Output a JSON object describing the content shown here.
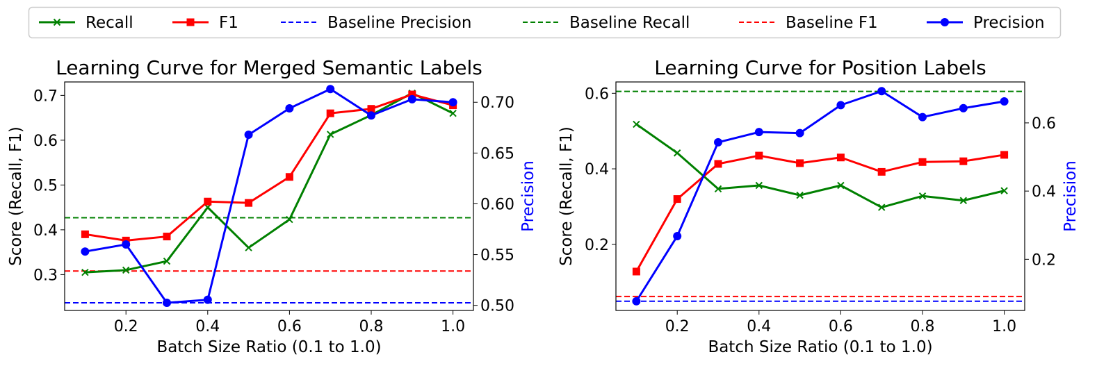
{
  "legend": [
    {
      "label": "Recall",
      "color": "#008000",
      "style": "solid",
      "marker": "x"
    },
    {
      "label": "F1",
      "color": "#ff0000",
      "style": "solid",
      "marker": "square"
    },
    {
      "label": "Baseline Precision",
      "color": "#0000ff",
      "style": "dashed",
      "marker": "none"
    },
    {
      "label": "Baseline Recall",
      "color": "#008000",
      "style": "dashed",
      "marker": "none"
    },
    {
      "label": "Baseline F1",
      "color": "#ff0000",
      "style": "dashed",
      "marker": "none"
    },
    {
      "label": "Precision",
      "color": "#0000ff",
      "style": "solid",
      "marker": "circle"
    }
  ],
  "chart_data": [
    {
      "type": "line",
      "title": "Learning Curve for Merged Semantic Labels",
      "xlabel": "Batch Size Ratio (0.1 to 1.0)",
      "ylabel": "Score (Recall, F1)",
      "ylabel_right": "Precision",
      "x": [
        0.1,
        0.2,
        0.3,
        0.4,
        0.5,
        0.6,
        0.7,
        0.8,
        0.9,
        1.0
      ],
      "xlim": [
        0.05,
        1.05
      ],
      "ylim": [
        0.22,
        0.73
      ],
      "ylim_right": [
        0.495,
        0.72
      ],
      "xticks": [
        "0.2",
        "0.4",
        "0.6",
        "0.8",
        "1.0"
      ],
      "yticks": [
        "0.3",
        "0.4",
        "0.5",
        "0.6",
        "0.7"
      ],
      "yticks_right": [
        "0.50",
        "0.55",
        "0.60",
        "0.65",
        "0.70"
      ],
      "series": [
        {
          "name": "Recall",
          "axis": "left",
          "values": [
            0.305,
            0.31,
            0.33,
            0.45,
            0.36,
            0.423,
            0.613,
            0.656,
            0.705,
            0.66
          ]
        },
        {
          "name": "F1",
          "axis": "left",
          "values": [
            0.39,
            0.376,
            0.385,
            0.463,
            0.46,
            0.518,
            0.66,
            0.67,
            0.702,
            0.678
          ]
        },
        {
          "name": "Precision",
          "axis": "right",
          "values": [
            0.553,
            0.56,
            0.5025,
            0.5055,
            0.668,
            0.694,
            0.713,
            0.687,
            0.703,
            0.7
          ]
        }
      ],
      "baselines": [
        {
          "name": "Baseline Precision",
          "axis": "right",
          "value": 0.5025
        },
        {
          "name": "Baseline Recall",
          "axis": "left",
          "value": 0.427
        },
        {
          "name": "Baseline F1",
          "axis": "left",
          "value": 0.308
        }
      ]
    },
    {
      "type": "line",
      "title": "Learning Curve for Position Labels",
      "xlabel": "Batch Size Ratio (0.1 to 1.0)",
      "ylabel": "Score (Recall, F1)",
      "ylabel_right": "Precision",
      "x": [
        0.1,
        0.2,
        0.3,
        0.4,
        0.5,
        0.6,
        0.7,
        0.8,
        0.9,
        1.0
      ],
      "xlim": [
        0.05,
        1.05
      ],
      "ylim": [
        0.025,
        0.63
      ],
      "ylim_right": [
        0.05,
        0.72
      ],
      "xticks": [
        "0.2",
        "0.4",
        "0.6",
        "0.8",
        "1.0"
      ],
      "yticks": [
        "0.2",
        "0.4",
        "0.6"
      ],
      "yticks_right": [
        "0.2",
        "0.4",
        "0.6"
      ],
      "series": [
        {
          "name": "Recall",
          "axis": "left",
          "values": [
            0.518,
            0.442,
            0.347,
            0.356,
            0.33,
            0.356,
            0.298,
            0.328,
            0.316,
            0.342
          ]
        },
        {
          "name": "F1",
          "axis": "left",
          "values": [
            0.128,
            0.32,
            0.413,
            0.435,
            0.415,
            0.43,
            0.392,
            0.418,
            0.42,
            0.437
          ]
        },
        {
          "name": "Precision",
          "axis": "right",
          "values": [
            0.077,
            0.268,
            0.543,
            0.573,
            0.57,
            0.652,
            0.693,
            0.617,
            0.643,
            0.663
          ]
        }
      ],
      "baselines": [
        {
          "name": "Baseline Precision",
          "axis": "right",
          "value": 0.077
        },
        {
          "name": "Baseline Recall",
          "axis": "left",
          "value": 0.605
        },
        {
          "name": "Baseline F1",
          "axis": "left",
          "value": 0.062
        }
      ]
    }
  ]
}
